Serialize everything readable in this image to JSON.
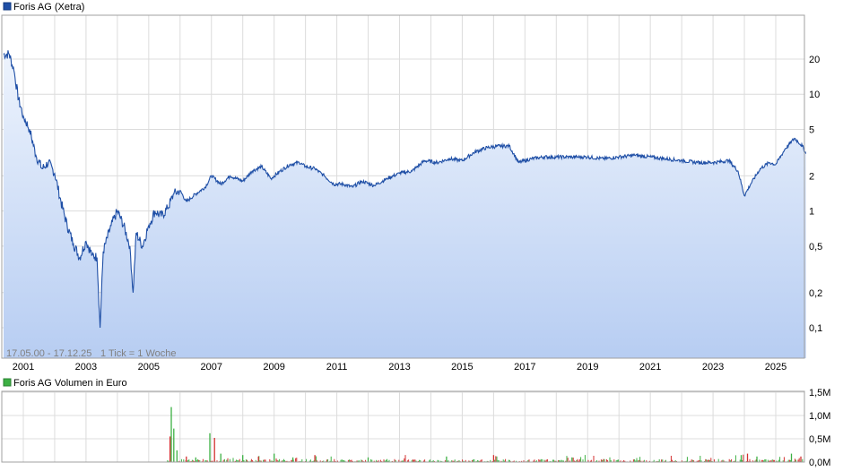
{
  "chart_data": [
    {
      "type": "area",
      "legend": "Foris AG (Xetra)",
      "range_label": "17.05.00 - 17.12.25",
      "tick_label": "1 Tick = 1 Woche",
      "y_scale": "log",
      "y_ticks": [
        {
          "value": 0.1,
          "label": "0,1"
        },
        {
          "value": 0.2,
          "label": "0,2"
        },
        {
          "value": 0.5,
          "label": "0,5"
        },
        {
          "value": 1,
          "label": "1"
        },
        {
          "value": 2,
          "label": "2"
        },
        {
          "value": 5,
          "label": "5"
        },
        {
          "value": 10,
          "label": "10"
        },
        {
          "value": 20,
          "label": "20"
        }
      ],
      "x_ticks": [
        "2001",
        "2003",
        "2005",
        "2007",
        "2009",
        "2011",
        "2013",
        "2015",
        "2017",
        "2019",
        "2021",
        "2023",
        "2025"
      ],
      "series": [
        {
          "name": "Foris AG (Xetra)",
          "color": "#1f4fa6",
          "points": [
            [
              2000.37,
              22
            ],
            [
              2000.55,
              22
            ],
            [
              2000.7,
              16
            ],
            [
              2000.85,
              9
            ],
            [
              2001.0,
              6.5
            ],
            [
              2001.2,
              5.0
            ],
            [
              2001.4,
              3.0
            ],
            [
              2001.6,
              2.3
            ],
            [
              2001.8,
              2.6
            ],
            [
              2002.0,
              2.1
            ],
            [
              2002.2,
              1.2
            ],
            [
              2002.4,
              0.75
            ],
            [
              2002.6,
              0.52
            ],
            [
              2002.8,
              0.4
            ],
            [
              2003.0,
              0.55
            ],
            [
              2003.2,
              0.42
            ],
            [
              2003.35,
              0.4
            ],
            [
              2003.45,
              0.1
            ],
            [
              2003.55,
              0.45
            ],
            [
              2003.8,
              0.75
            ],
            [
              2004.0,
              1.0
            ],
            [
              2004.2,
              0.75
            ],
            [
              2004.4,
              0.5
            ],
            [
              2004.5,
              0.2
            ],
            [
              2004.6,
              0.65
            ],
            [
              2004.8,
              0.5
            ],
            [
              2005.0,
              0.75
            ],
            [
              2005.2,
              1.0
            ],
            [
              2005.4,
              0.9
            ],
            [
              2005.6,
              1.05
            ],
            [
              2005.8,
              1.4
            ],
            [
              2006.0,
              1.5
            ],
            [
              2006.2,
              1.2
            ],
            [
              2006.5,
              1.4
            ],
            [
              2006.8,
              1.6
            ],
            [
              2007.0,
              2.0
            ],
            [
              2007.3,
              1.7
            ],
            [
              2007.6,
              2.0
            ],
            [
              2008.0,
              1.8
            ],
            [
              2008.3,
              2.2
            ],
            [
              2008.6,
              2.4
            ],
            [
              2008.9,
              1.9
            ],
            [
              2009.2,
              2.2
            ],
            [
              2009.5,
              2.5
            ],
            [
              2009.8,
              2.6
            ],
            [
              2010.0,
              2.4
            ],
            [
              2010.3,
              2.3
            ],
            [
              2010.6,
              2.0
            ],
            [
              2010.9,
              1.7
            ],
            [
              2011.2,
              1.7
            ],
            [
              2011.5,
              1.6
            ],
            [
              2011.8,
              1.8
            ],
            [
              2012.2,
              1.65
            ],
            [
              2012.6,
              1.9
            ],
            [
              2013.0,
              2.1
            ],
            [
              2013.4,
              2.2
            ],
            [
              2013.8,
              2.7
            ],
            [
              2014.2,
              2.6
            ],
            [
              2014.6,
              2.8
            ],
            [
              2015.0,
              2.7
            ],
            [
              2015.4,
              3.2
            ],
            [
              2015.8,
              3.5
            ],
            [
              2016.2,
              3.6
            ],
            [
              2016.5,
              3.6
            ],
            [
              2016.8,
              2.6
            ],
            [
              2017.2,
              2.8
            ],
            [
              2017.6,
              2.9
            ],
            [
              2018.0,
              2.9
            ],
            [
              2018.5,
              2.9
            ],
            [
              2019.0,
              2.9
            ],
            [
              2019.5,
              2.8
            ],
            [
              2020.0,
              2.9
            ],
            [
              2020.5,
              3.0
            ],
            [
              2021.0,
              2.9
            ],
            [
              2021.5,
              2.8
            ],
            [
              2022.0,
              2.7
            ],
            [
              2022.5,
              2.6
            ],
            [
              2023.0,
              2.6
            ],
            [
              2023.5,
              2.7
            ],
            [
              2023.8,
              2.2
            ],
            [
              2024.0,
              1.35
            ],
            [
              2024.2,
              1.7
            ],
            [
              2024.5,
              2.3
            ],
            [
              2024.8,
              2.6
            ],
            [
              2025.0,
              2.5
            ],
            [
              2025.3,
              3.4
            ],
            [
              2025.6,
              4.2
            ],
            [
              2025.85,
              3.6
            ],
            [
              2025.96,
              3.1
            ]
          ]
        }
      ]
    },
    {
      "type": "bar",
      "legend": "Foris AG Volumen in Euro",
      "y_ticks": [
        {
          "value": 0,
          "label": "0,0M"
        },
        {
          "value": 0.5,
          "label": "0,5M"
        },
        {
          "value": 1.0,
          "label": "1,0M"
        },
        {
          "value": 1.5,
          "label": "1,5M"
        }
      ],
      "series": [
        {
          "name": "Foris AG Volumen in Euro",
          "color": "#3cb043",
          "secondary_color": "#d32f2f",
          "spikes": [
            [
              2005.72,
              1.18
            ],
            [
              2005.68,
              0.55
            ],
            [
              2005.8,
              0.72
            ],
            [
              2005.9,
              0.25
            ],
            [
              2006.2,
              0.12
            ],
            [
              2006.5,
              0.1
            ],
            [
              2006.95,
              0.62
            ],
            [
              2007.1,
              0.52
            ],
            [
              2007.3,
              0.18
            ],
            [
              2008.0,
              0.15
            ],
            [
              2008.5,
              0.12
            ],
            [
              2009.0,
              0.18
            ],
            [
              2009.6,
              0.1
            ],
            [
              2010.3,
              0.15
            ],
            [
              2012.0,
              0.1
            ],
            [
              2014.5,
              0.12
            ],
            [
              2016.0,
              0.15
            ],
            [
              2018.5,
              0.1
            ],
            [
              2023.9,
              0.15
            ],
            [
              2024.1,
              0.18
            ],
            [
              2024.4,
              0.12
            ],
            [
              2025.5,
              0.18
            ],
            [
              2025.8,
              0.12
            ]
          ]
        }
      ]
    }
  ]
}
